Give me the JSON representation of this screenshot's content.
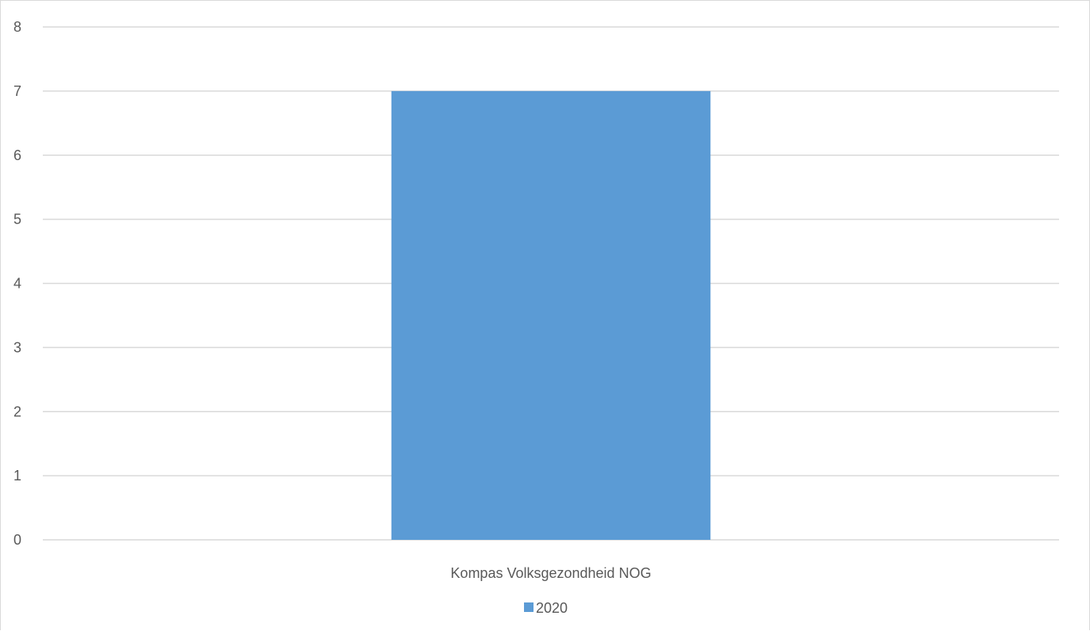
{
  "chart_data": {
    "type": "bar",
    "categories": [
      "Kompas Volksgezondheid NOG"
    ],
    "series": [
      {
        "name": "2020",
        "values": [
          7
        ],
        "color": "#5b9bd5"
      }
    ],
    "y_ticks": [
      "0",
      "1",
      "2",
      "3",
      "4",
      "5",
      "6",
      "7",
      "8"
    ],
    "ylim": [
      0,
      8
    ],
    "grid": true,
    "grid_color": "#d9d9d9",
    "legend": {
      "position": "bottom",
      "entries": [
        "2020"
      ]
    },
    "title": "",
    "xlabel": "",
    "ylabel": ""
  }
}
